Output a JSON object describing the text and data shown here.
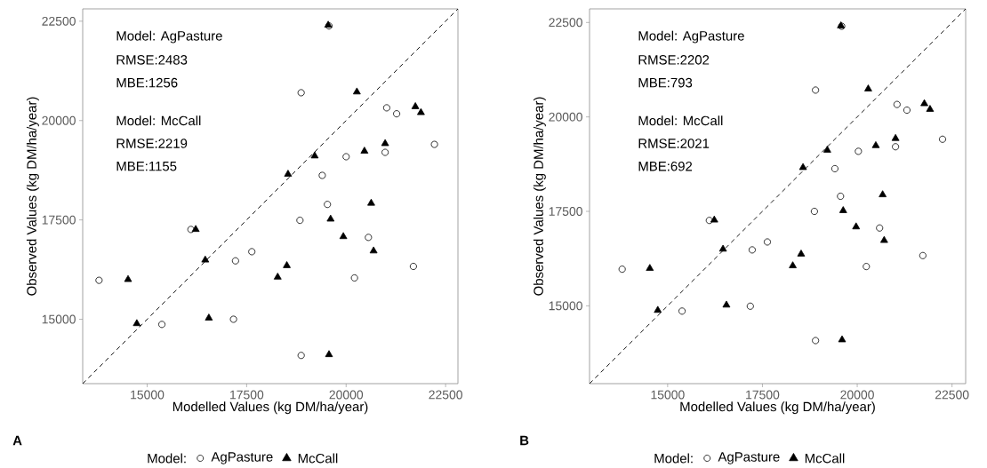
{
  "chart_data": [
    {
      "type": "scatter",
      "xlabel": "Modelled Values (kg DM/ha/year)",
      "ylabel": "Observed Values (kg DM/ha/year)",
      "xlim": [
        13380,
        22810
      ],
      "ylim": [
        13380,
        22810
      ],
      "xticks": [
        15000,
        17500,
        20000,
        22500
      ],
      "yticks": [
        15000,
        17500,
        20000,
        22500
      ],
      "legend": "bottom",
      "legend_title": "Model:",
      "annotations": [
        "Model: AgPasture",
        "RMSE:2483",
        "MBE:1256",
        "Model: McCall",
        "RMSE:2219",
        "MBE:1155",
        "A"
      ],
      "series": [
        {
          "type": "line",
          "color": "#000000",
          "line_style": "dashed",
          "x": [
            13380,
            22810
          ],
          "values": [
            13380,
            22810
          ]
        },
        {
          "name": "AgPasture",
          "color": "#000000",
          "marker": "circle",
          "x": [
            13790,
            16100,
            15370,
            17220,
            17630,
            17170,
            19570,
            18870,
            21020,
            21270,
            22220,
            20980,
            20000,
            19400,
            19530,
            18840,
            20560,
            21690,
            20210,
            18870
          ],
          "values": [
            15980,
            17260,
            14870,
            16470,
            16700,
            15000,
            22380,
            20700,
            20320,
            20170,
            19400,
            19200,
            19090,
            18620,
            17890,
            17490,
            17060,
            16330,
            16040,
            14090
          ]
        },
        {
          "name": "McCall",
          "color": "#000000",
          "marker": "triangle",
          "x": [
            14520,
            16220,
            16460,
            14740,
            16550,
            19550,
            20270,
            21740,
            21880,
            20980,
            20460,
            19210,
            18540,
            20630,
            19610,
            19930,
            20690,
            18510,
            18280,
            19570
          ],
          "values": [
            16000,
            17260,
            16490,
            14890,
            15030,
            22400,
            20720,
            20350,
            20200,
            19420,
            19230,
            19110,
            18650,
            17920,
            17520,
            17080,
            16720,
            16350,
            16060,
            14110
          ]
        }
      ]
    },
    {
      "type": "scatter",
      "xlabel": "Modelled Values (kg DM/ha/year)",
      "ylabel": "Observed Values (kg DM/ha/year)",
      "xlim": [
        12940,
        22860
      ],
      "ylim": [
        12940,
        22860
      ],
      "xticks": [
        15000,
        17500,
        20000,
        22500
      ],
      "yticks": [
        15000,
        17500,
        20000,
        22500
      ],
      "legend": "bottom",
      "legend_title": "Model:",
      "annotations": [
        "Model: AgPasture",
        "RMSE:2202",
        "MBE:793",
        "Model: McCall",
        "RMSE:2021",
        "MBE:692",
        "B"
      ],
      "series": [
        {
          "type": "line",
          "color": "#000000",
          "line_style": "dashed",
          "x": [
            12940,
            22860
          ],
          "values": [
            12940,
            22860
          ]
        },
        {
          "name": "AgPasture",
          "color": "#000000",
          "marker": "circle",
          "x": [
            13800,
            16100,
            15380,
            17230,
            17180,
            17630,
            19590,
            18900,
            21050,
            21310,
            22250,
            21010,
            20030,
            19410,
            19560,
            18870,
            20590,
            21730,
            20240,
            18900
          ],
          "values": [
            15970,
            17260,
            14860,
            16480,
            14990,
            16690,
            22400,
            20710,
            20330,
            20180,
            19410,
            19210,
            19090,
            18630,
            17900,
            17500,
            17060,
            16330,
            16040,
            14080
          ]
        },
        {
          "name": "McCall",
          "color": "#000000",
          "marker": "triangle",
          "x": [
            14530,
            16230,
            16460,
            14740,
            16550,
            19570,
            20290,
            21770,
            21920,
            21010,
            20490,
            19210,
            18570,
            20670,
            19630,
            19970,
            20710,
            18520,
            18300,
            19600
          ],
          "values": [
            15990,
            17270,
            16500,
            14880,
            15020,
            22410,
            20740,
            20350,
            20200,
            19430,
            19240,
            19120,
            18660,
            17940,
            17520,
            17090,
            16730,
            16370,
            16060,
            14100
          ]
        }
      ]
    }
  ]
}
